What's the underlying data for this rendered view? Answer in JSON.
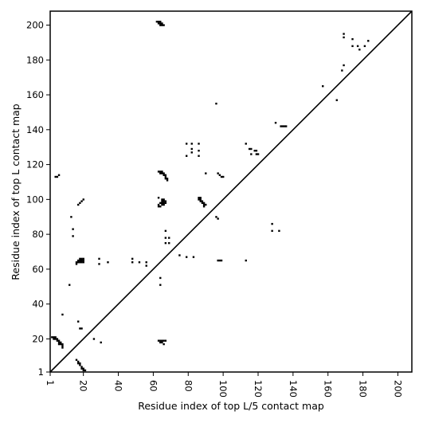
{
  "chart_data": {
    "type": "scatter",
    "xlabel": "Residue index of top L/5 contact map",
    "ylabel": "Residue index of top L contact map",
    "xlim": [
      1,
      208
    ],
    "ylim": [
      1,
      208
    ],
    "x_ticks": [
      1,
      20,
      40,
      60,
      80,
      100,
      120,
      140,
      160,
      180,
      200
    ],
    "x_tick_labels": [
      "1",
      "20",
      "40",
      "60",
      "80",
      "100",
      "120",
      "140",
      "160",
      "180",
      "200"
    ],
    "y_ticks": [
      1,
      20,
      40,
      60,
      80,
      100,
      120,
      140,
      160,
      180,
      200
    ],
    "y_tick_labels": [
      "1",
      "20",
      "40",
      "60",
      "80",
      "100",
      "120",
      "140",
      "160",
      "180",
      "200"
    ],
    "grid": false,
    "diagonal": true,
    "mark_color": "#000000",
    "upper_triangle_contacts_top_L": [
      [
        62,
        202
      ],
      [
        63,
        202
      ],
      [
        64,
        202
      ],
      [
        63,
        201
      ],
      [
        64,
        201
      ],
      [
        65,
        201
      ],
      [
        64,
        200
      ],
      [
        65,
        200
      ],
      [
        66,
        200
      ],
      [
        4,
        113
      ],
      [
        5,
        113
      ],
      [
        6,
        114
      ],
      [
        13,
        90
      ],
      [
        14,
        83
      ],
      [
        14,
        79
      ],
      [
        12,
        51
      ],
      [
        8,
        34
      ],
      [
        17,
        97
      ],
      [
        18,
        98
      ],
      [
        19,
        99
      ],
      [
        20,
        100
      ],
      [
        16,
        63
      ],
      [
        16,
        64
      ],
      [
        17,
        64
      ],
      [
        17,
        65
      ],
      [
        18,
        64
      ],
      [
        18,
        65
      ],
      [
        18,
        66
      ],
      [
        19,
        64
      ],
      [
        19,
        65
      ],
      [
        19,
        66
      ],
      [
        20,
        64
      ],
      [
        20,
        65
      ],
      [
        20,
        66
      ],
      [
        29,
        63
      ],
      [
        29,
        66
      ],
      [
        34,
        64
      ],
      [
        48,
        64
      ],
      [
        48,
        66
      ],
      [
        52,
        64
      ],
      [
        56,
        62
      ],
      [
        56,
        64
      ],
      [
        63,
        101
      ],
      [
        63,
        97
      ],
      [
        63,
        96
      ],
      [
        64,
        96
      ],
      [
        64,
        98
      ],
      [
        65,
        97
      ],
      [
        65,
        98
      ],
      [
        65,
        99
      ],
      [
        66,
        97
      ],
      [
        66,
        98
      ],
      [
        66,
        99
      ],
      [
        67,
        98
      ],
      [
        67,
        99
      ],
      [
        65,
        100
      ],
      [
        66,
        100
      ],
      [
        63,
        116
      ],
      [
        64,
        116
      ],
      [
        65,
        116
      ],
      [
        64,
        115
      ],
      [
        65,
        115
      ],
      [
        66,
        115
      ],
      [
        66,
        114
      ],
      [
        67,
        114
      ],
      [
        67,
        113
      ],
      [
        67,
        112
      ],
      [
        68,
        112
      ],
      [
        68,
        111
      ],
      [
        64,
        55
      ],
      [
        64,
        51
      ],
      [
        67,
        82
      ],
      [
        67,
        78
      ],
      [
        67,
        75
      ],
      [
        69,
        78
      ],
      [
        69,
        75
      ],
      [
        75,
        68
      ],
      [
        79,
        67
      ],
      [
        83,
        67
      ],
      [
        79,
        132
      ],
      [
        79,
        125
      ],
      [
        82,
        132
      ],
      [
        82,
        129
      ],
      [
        82,
        127
      ],
      [
        86,
        132
      ],
      [
        86,
        128
      ],
      [
        86,
        125
      ],
      [
        86,
        101
      ],
      [
        86,
        100
      ],
      [
        87,
        101
      ],
      [
        87,
        100
      ],
      [
        87,
        99
      ],
      [
        88,
        99
      ],
      [
        88,
        98
      ],
      [
        89,
        98
      ],
      [
        89,
        97
      ],
      [
        89,
        96
      ],
      [
        90,
        97
      ],
      [
        90,
        115
      ],
      [
        96,
        155
      ],
      [
        96,
        90
      ],
      [
        97,
        89
      ],
      [
        97,
        115
      ],
      [
        98,
        114
      ],
      [
        99,
        113
      ],
      [
        100,
        113
      ],
      [
        97,
        65
      ],
      [
        98,
        65
      ],
      [
        99,
        65
      ],
      [
        113,
        65
      ],
      [
        113,
        132
      ],
      [
        115,
        129
      ],
      [
        116,
        129
      ],
      [
        116,
        126
      ],
      [
        118,
        128
      ],
      [
        119,
        128
      ],
      [
        119,
        126
      ],
      [
        120,
        126
      ],
      [
        128,
        86
      ],
      [
        128,
        82
      ],
      [
        132,
        82
      ],
      [
        130,
        144
      ],
      [
        133,
        142
      ],
      [
        134,
        142
      ],
      [
        135,
        142
      ],
      [
        136,
        142
      ],
      [
        157,
        165
      ],
      [
        165,
        157
      ],
      [
        168,
        174
      ],
      [
        169,
        177
      ],
      [
        169,
        195
      ],
      [
        169,
        193
      ],
      [
        174,
        192
      ],
      [
        174,
        188
      ],
      [
        177,
        188
      ],
      [
        178,
        186
      ],
      [
        181,
        188
      ],
      [
        183,
        191
      ]
    ],
    "lower_triangle_contacts_top_L5": [
      [
        2,
        21
      ],
      [
        3,
        21
      ],
      [
        3,
        20
      ],
      [
        4,
        21
      ],
      [
        4,
        20
      ],
      [
        5,
        20
      ],
      [
        5,
        19
      ],
      [
        6,
        19
      ],
      [
        6,
        18
      ],
      [
        6,
        17
      ],
      [
        7,
        18
      ],
      [
        7,
        17
      ],
      [
        8,
        17
      ],
      [
        8,
        16
      ],
      [
        8,
        15
      ],
      [
        16,
        8
      ],
      [
        17,
        7
      ],
      [
        17,
        6
      ],
      [
        18,
        6
      ],
      [
        18,
        5
      ],
      [
        19,
        4
      ],
      [
        19,
        3
      ],
      [
        20,
        3
      ],
      [
        20,
        2
      ],
      [
        21,
        2
      ],
      [
        17,
        30
      ],
      [
        18,
        26
      ],
      [
        19,
        26
      ],
      [
        26,
        20
      ],
      [
        30,
        18
      ],
      [
        63,
        19
      ],
      [
        64,
        19
      ],
      [
        64,
        18
      ],
      [
        65,
        19
      ],
      [
        65,
        18
      ],
      [
        66,
        19
      ],
      [
        66,
        17
      ],
      [
        67,
        19
      ]
    ]
  }
}
